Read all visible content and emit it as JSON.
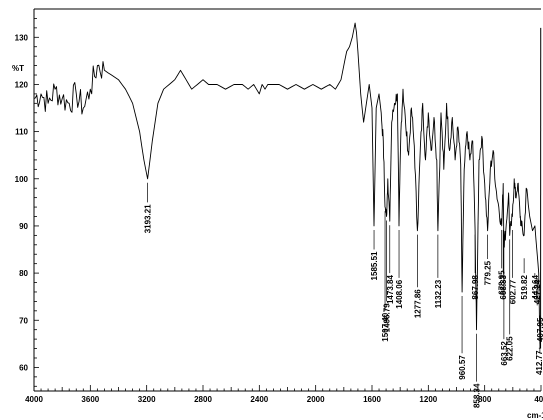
{
  "chart_data": {
    "type": "line",
    "title": "",
    "xlabel": "cm-1",
    "ylabel": "%T",
    "xlim": [
      4000,
      400
    ],
    "ylim": [
      55,
      136
    ],
    "x_ticks": [
      4000,
      3600,
      3200,
      2800,
      2400,
      2000,
      1600,
      1200,
      800,
      400
    ],
    "x_tick_labels": [
      "4000",
      "3600",
      "3200",
      "2800",
      "2400",
      "2000",
      "1600",
      "1200",
      "800",
      "400"
    ],
    "y_ticks": [
      60,
      70,
      80,
      90,
      100,
      110,
      120,
      130
    ],
    "y_tick_labels": [
      "60",
      "70",
      "80",
      "90",
      "100",
      "110",
      "120",
      "130"
    ],
    "grid": false,
    "series": [
      {
        "color": "#000000",
        "x": [
          4000,
          3950,
          3900,
          3850,
          3800,
          3750,
          3700,
          3650,
          3600,
          3550,
          3500,
          3450,
          3400,
          3350,
          3300,
          3250,
          3220,
          3193.21,
          3160,
          3120,
          3080,
          3040,
          3000,
          2960,
          2920,
          2880,
          2840,
          2800,
          2760,
          2700,
          2640,
          2580,
          2520,
          2480,
          2440,
          2400,
          2380,
          2360,
          2340,
          2300,
          2260,
          2200,
          2140,
          2080,
          2020,
          1960,
          1900,
          1860,
          1820,
          1800,
          1780,
          1760,
          1740,
          1720,
          1710,
          1700,
          1680,
          1660,
          1640,
          1620,
          1600,
          1585.51,
          1570,
          1550,
          1535,
          1520,
          1507.4,
          1496.79,
          1488,
          1473.84,
          1460,
          1440,
          1420,
          1408.06,
          1395,
          1380,
          1360,
          1340,
          1320,
          1300,
          1277.86,
          1260,
          1240,
          1220,
          1200,
          1180,
          1160,
          1140,
          1132.23,
          1110,
          1090,
          1070,
          1050,
          1030,
          1010,
          990,
          970,
          960.57,
          945,
          925,
          905,
          885,
          867.98,
          858.34,
          840,
          820,
          800,
          779.25,
          760,
          740,
          720,
          700,
          678.95,
          668.33,
          663.52,
          650,
          630,
          622.05,
          602.77,
          590,
          580,
          565,
          550,
          540,
          519.82,
          505,
          480,
          460,
          443.64,
          427.24,
          416,
          412.77,
          407.95,
          403
        ],
        "y": [
          117,
          118,
          116,
          119,
          117,
          116,
          118,
          115,
          119,
          124,
          123,
          122,
          121,
          119,
          116,
          110,
          104,
          100,
          108,
          116,
          119,
          120,
          121,
          123,
          121,
          119,
          120,
          121,
          120,
          120,
          119,
          120,
          120,
          119,
          120,
          118,
          120,
          119,
          120,
          120,
          120,
          119,
          120,
          119,
          120,
          119,
          120,
          119,
          121,
          124,
          127,
          128,
          130,
          133,
          131,
          127,
          118,
          112,
          116,
          120,
          115,
          90,
          115,
          118,
          114,
          108,
          94,
          92,
          100,
          91,
          112,
          116,
          118,
          90,
          110,
          119,
          111,
          105,
          115,
          107,
          89,
          104,
          116,
          104,
          114,
          106,
          113,
          104,
          89,
          114,
          102,
          116,
          106,
          113,
          104,
          111,
          103,
          76,
          102,
          110,
          104,
          108,
          89,
          68,
          104,
          109,
          99,
          89,
          102,
          106,
          98,
          94,
          90,
          99,
          86,
          89,
          97,
          88,
          92,
          100,
          96,
          99,
          93,
          90,
          88,
          98,
          92,
          89,
          90,
          84,
          80,
          74,
          65,
          64
        ]
      }
    ],
    "annotations": [
      "3193.21",
      "1585.51",
      "1507.40",
      "1496.79",
      "1473.84",
      "1408.06",
      "1277.86",
      "1132.23",
      "960.57",
      "858.34",
      "867.98",
      "779.25",
      "678.95",
      "668.33",
      "663.52",
      "622.05",
      "602.77",
      "519.82",
      "443.64",
      "427.24",
      "412.77",
      "407.95"
    ]
  }
}
